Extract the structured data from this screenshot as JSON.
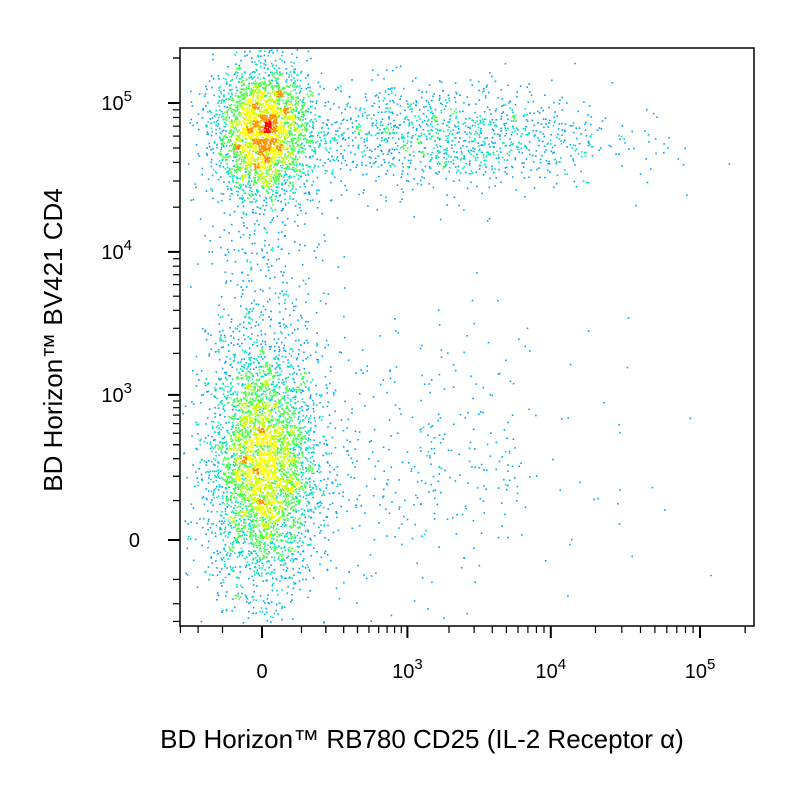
{
  "chart_data": {
    "type": "scatter",
    "subtype": "flow-cytometry-density-dot-plot",
    "title": "",
    "xlabel": "BD Horizon™ RB780 CD25 (IL-2 Receptor α)",
    "ylabel": "BD Horizon™ BV421 CD4",
    "x_scale": "biexponential",
    "y_scale": "biexponential",
    "xlim": [
      -300,
      250000
    ],
    "ylim": [
      -300,
      250000
    ],
    "x_ticks": [
      {
        "value": 0,
        "base": "0",
        "exp": ""
      },
      {
        "value": 1000,
        "base": "10",
        "exp": "3"
      },
      {
        "value": 10000,
        "base": "10",
        "exp": "4"
      },
      {
        "value": 100000,
        "base": "10",
        "exp": "5"
      }
    ],
    "y_ticks": [
      {
        "value": 0,
        "base": "0",
        "exp": ""
      },
      {
        "value": 1000,
        "base": "10",
        "exp": "3"
      },
      {
        "value": 10000,
        "base": "10",
        "exp": "4"
      },
      {
        "value": 100000,
        "base": "10",
        "exp": "5"
      }
    ],
    "grid": false,
    "legend": "none",
    "color_map": [
      "#0000ff",
      "#00a0ff",
      "#00e0c0",
      "#40ff40",
      "#c0ff00",
      "#ffff00",
      "#ff9000",
      "#ff0000"
    ],
    "populations": [
      {
        "name": "",
        "center": [
          0,
          250
        ],
        "spread": [
          120,
          0.9
        ],
        "relative_density": 1.0
      },
      {
        "name": "",
        "center": [
          0,
          65000
        ],
        "spread": [
          100,
          0.5
        ],
        "relative_density": 0.7
      },
      {
        "name": "",
        "center": [
          1500,
          60000
        ],
        "spread": [
          1.0,
          0.4
        ],
        "relative_density": 0.35
      },
      {
        "name": "",
        "center": [
          800,
          300
        ],
        "spread": [
          1.1,
          1.0
        ],
        "relative_density": 0.12
      },
      {
        "name": "",
        "center": [
          0,
          5000
        ],
        "spread": [
          150,
          1.2
        ],
        "relative_density": 0.1
      }
    ]
  },
  "colors": {
    "axis": "#000000",
    "background": "#ffffff"
  }
}
